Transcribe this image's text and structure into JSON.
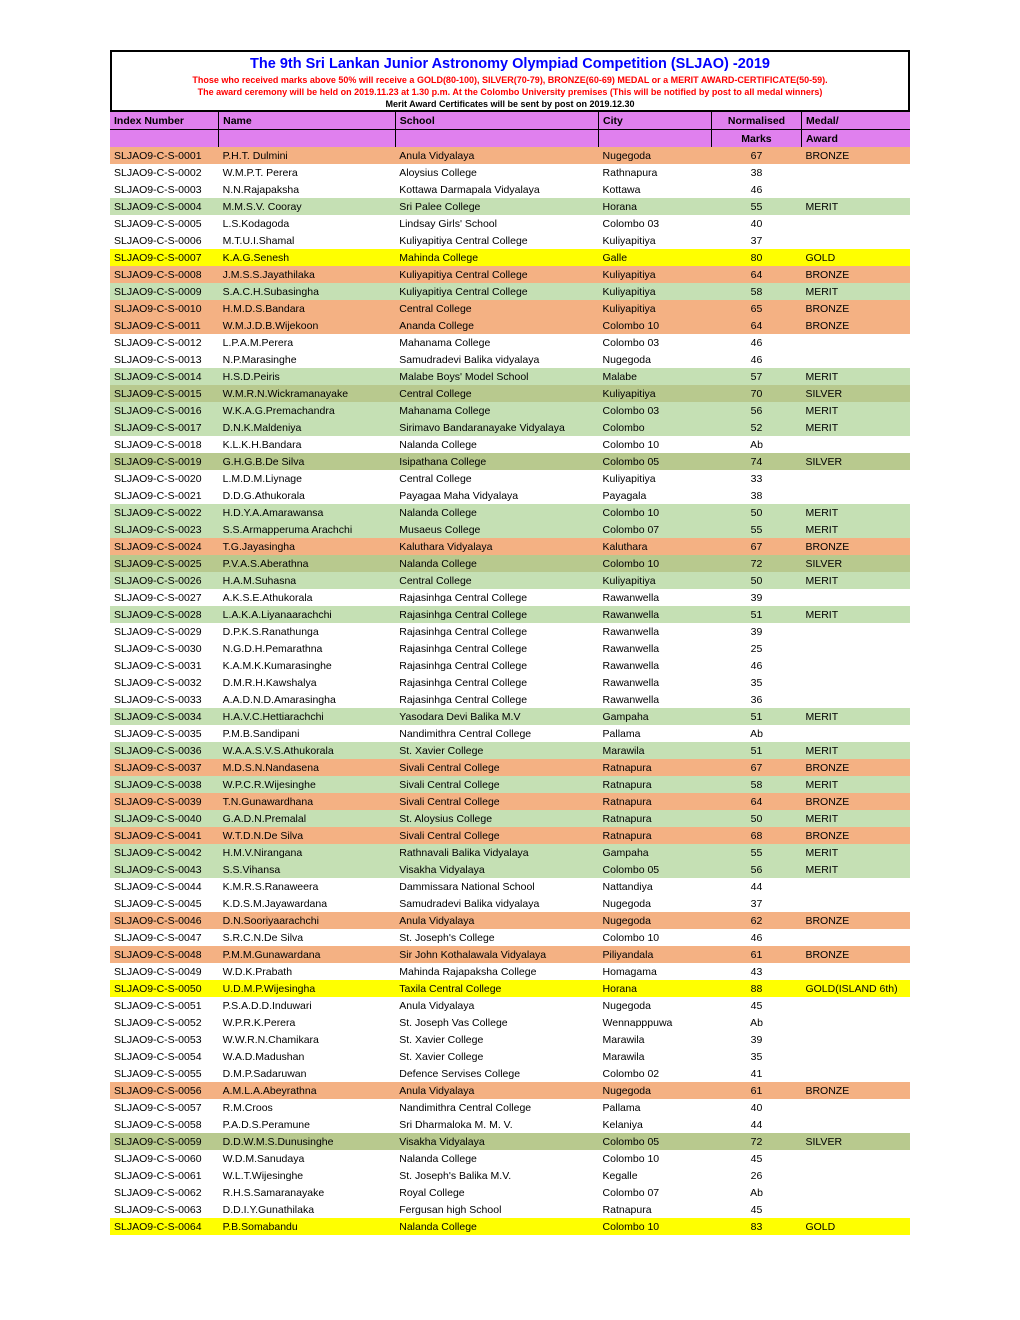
{
  "header": {
    "title": "The 9th Sri Lankan Junior Astronomy  Olympiad Competition (SLJAO) -2019",
    "line1": "Those who received marks above 50% will receive a GOLD(80-100), SILVER(70-79), BRONZE(60-69) MEDAL or a MERIT AWARD-CERTIFICATE(50-59).",
    "line2": "The award ceremony will be held on 2019.11.23 at 1.30 p.m. At the Colombo University premises (This will be notified by post to all medal  winners)",
    "line3": "Merit Award Certificates will be sent by post on 2019.12.30"
  },
  "columns": {
    "index": "Index Number",
    "name": "Name",
    "school": "School",
    "city": "City",
    "marks1": "Normalised",
    "marks2": "Marks",
    "award1": "Medal/",
    "award2": "Award"
  },
  "colors": {
    "gold": "#ffff00",
    "silver": "#b8c98e",
    "bronze": "#f4b183",
    "merit": "#c5e0b4",
    "none": "#ffffff",
    "header_bg": "#e080ee",
    "title_color": "#0000ff",
    "subtext_color": "#ff0000"
  },
  "rows": [
    {
      "index": "SLJAO9-C-S-0001",
      "name": "P.H.T. Dulmini",
      "school": "Anula Vidyalaya",
      "city": "Nugegoda",
      "marks": "67",
      "award": "BRONZE",
      "tier": "bronze"
    },
    {
      "index": "SLJAO9-C-S-0002",
      "name": "W.M.P.T. Perera",
      "school": "Aloysius College",
      "city": "Rathnapura",
      "marks": "38",
      "award": "",
      "tier": "none"
    },
    {
      "index": "SLJAO9-C-S-0003",
      "name": "N.N.Rajapaksha",
      "school": "Kottawa Darmapala Vidyalaya",
      "city": "Kottawa",
      "marks": "46",
      "award": "",
      "tier": "none"
    },
    {
      "index": "SLJAO9-C-S-0004",
      "name": "M.M.S.V. Cooray",
      "school": "Sri Palee College",
      "city": "Horana",
      "marks": "55",
      "award": "MERIT",
      "tier": "merit"
    },
    {
      "index": "SLJAO9-C-S-0005",
      "name": "L.S.Kodagoda",
      "school": "Lindsay Girls' School",
      "city": "Colombo 03",
      "marks": "40",
      "award": "",
      "tier": "none"
    },
    {
      "index": "SLJAO9-C-S-0006",
      "name": "M.T.U.I.Shamal",
      "school": "Kuliyapitiya Central College",
      "city": "Kuliyapitiya",
      "marks": "37",
      "award": "",
      "tier": "none"
    },
    {
      "index": "SLJAO9-C-S-0007",
      "name": "K.A.G.Senesh",
      "school": "Mahinda College",
      "city": "Galle",
      "marks": "80",
      "award": "GOLD",
      "tier": "gold"
    },
    {
      "index": "SLJAO9-C-S-0008",
      "name": "J.M.S.S.Jayathilaka",
      "school": "Kuliyapitiya Central College",
      "city": "Kuliyapitiya",
      "marks": "64",
      "award": "BRONZE",
      "tier": "bronze"
    },
    {
      "index": "SLJAO9-C-S-0009",
      "name": "S.A.C.H.Subasingha",
      "school": "Kuliyapitiya Central College",
      "city": "Kuliyapitiya",
      "marks": "58",
      "award": "MERIT",
      "tier": "merit"
    },
    {
      "index": "SLJAO9-C-S-0010",
      "name": "H.M.D.S.Bandara",
      "school": "Central College",
      "city": "Kuliyapitiya",
      "marks": "65",
      "award": "BRONZE",
      "tier": "bronze"
    },
    {
      "index": "SLJAO9-C-S-0011",
      "name": "W.M.J.D.B.Wijekoon",
      "school": "Ananda College",
      "city": "Colombo 10",
      "marks": "64",
      "award": "BRONZE",
      "tier": "bronze"
    },
    {
      "index": "SLJAO9-C-S-0012",
      "name": "L.P.A.M.Perera",
      "school": "Mahanama College",
      "city": "Colombo 03",
      "marks": "46",
      "award": "",
      "tier": "none"
    },
    {
      "index": "SLJAO9-C-S-0013",
      "name": "N.P.Marasinghe",
      "school": "Samudradevi Balika vidyalaya",
      "city": "Nugegoda",
      "marks": "46",
      "award": "",
      "tier": "none"
    },
    {
      "index": "SLJAO9-C-S-0014",
      "name": "H.S.D.Peiris",
      "school": "Malabe Boys' Model School",
      "city": "Malabe",
      "marks": "57",
      "award": "MERIT",
      "tier": "merit"
    },
    {
      "index": "SLJAO9-C-S-0015",
      "name": "W.M.R.N.Wickramanayake",
      "school": "Central College",
      "city": "Kuliyapitiya",
      "marks": "70",
      "award": "SILVER",
      "tier": "silver"
    },
    {
      "index": "SLJAO9-C-S-0016",
      "name": "W.K.A.G.Premachandra",
      "school": "Mahanama College",
      "city": "Colombo 03",
      "marks": "56",
      "award": "MERIT",
      "tier": "merit"
    },
    {
      "index": "SLJAO9-C-S-0017",
      "name": "D.N.K.Maldeniya",
      "school": "Sirimavo Bandaranayake Vidyalaya",
      "city": "Colombo",
      "marks": "52",
      "award": "MERIT",
      "tier": "merit"
    },
    {
      "index": "SLJAO9-C-S-0018",
      "name": "K.L.K.H.Bandara",
      "school": "Nalanda College",
      "city": "Colombo 10",
      "marks": "Ab",
      "award": "",
      "tier": "none"
    },
    {
      "index": "SLJAO9-C-S-0019",
      "name": "G.H.G.B.De Silva",
      "school": "Isipathana College",
      "city": "Colombo 05",
      "marks": "74",
      "award": "SILVER",
      "tier": "silver"
    },
    {
      "index": "SLJAO9-C-S-0020",
      "name": "L.M.D.M.Liynage",
      "school": "Central College",
      "city": "Kuliyapitiya",
      "marks": "33",
      "award": "",
      "tier": "none"
    },
    {
      "index": "SLJAO9-C-S-0021",
      "name": "D.D.G.Athukorala",
      "school": "Payagaa Maha Vidyalaya",
      "city": "Payagala",
      "marks": "38",
      "award": "",
      "tier": "none"
    },
    {
      "index": "SLJAO9-C-S-0022",
      "name": "H.D.Y.A.Amarawansa",
      "school": "Nalanda College",
      "city": "Colombo 10",
      "marks": "50",
      "award": "MERIT",
      "tier": "merit"
    },
    {
      "index": "SLJAO9-C-S-0023",
      "name": "S.S.Armapperuma Arachchi",
      "school": "Musaeus College",
      "city": "Colombo 07",
      "marks": "55",
      "award": "MERIT",
      "tier": "merit"
    },
    {
      "index": "SLJAO9-C-S-0024",
      "name": "T.G.Jayasingha",
      "school": "Kaluthara Vidyalaya",
      "city": "Kaluthara",
      "marks": "67",
      "award": "BRONZE",
      "tier": "bronze"
    },
    {
      "index": "SLJAO9-C-S-0025",
      "name": "P.V.A.S.Aberathna",
      "school": "Nalanda College",
      "city": "Colombo 10",
      "marks": "72",
      "award": "SILVER",
      "tier": "silver"
    },
    {
      "index": "SLJAO9-C-S-0026",
      "name": "H.A.M.Suhasna",
      "school": "Central College",
      "city": "Kuliyapitiya",
      "marks": "50",
      "award": "MERIT",
      "tier": "merit"
    },
    {
      "index": "SLJAO9-C-S-0027",
      "name": "A.K.S.E.Athukorala",
      "school": "Rajasinhga Central College",
      "city": "Rawanwella",
      "marks": "39",
      "award": "",
      "tier": "none"
    },
    {
      "index": "SLJAO9-C-S-0028",
      "name": "L.A.K.A.Liyanaarachchi",
      "school": "Rajasinhga Central College",
      "city": "Rawanwella",
      "marks": "51",
      "award": "MERIT",
      "tier": "merit"
    },
    {
      "index": "SLJAO9-C-S-0029",
      "name": "D.P.K.S.Ranathunga",
      "school": "Rajasinhga Central College",
      "city": "Rawanwella",
      "marks": "39",
      "award": "",
      "tier": "none"
    },
    {
      "index": "SLJAO9-C-S-0030",
      "name": "N.G.D.H.Pemarathna",
      "school": "Rajasinhga Central College",
      "city": "Rawanwella",
      "marks": "25",
      "award": "",
      "tier": "none"
    },
    {
      "index": "SLJAO9-C-S-0031",
      "name": "K.A.M.K.Kumarasinghe",
      "school": "Rajasinhga Central College",
      "city": "Rawanwella",
      "marks": "46",
      "award": "",
      "tier": "none"
    },
    {
      "index": "SLJAO9-C-S-0032",
      "name": "D.M.R.H.Kawshalya",
      "school": "Rajasinhga Central College",
      "city": "Rawanwella",
      "marks": "35",
      "award": "",
      "tier": "none"
    },
    {
      "index": "SLJAO9-C-S-0033",
      "name": "A.A.D.N.D.Amarasingha",
      "school": "Rajasinhga Central College",
      "city": "Rawanwella",
      "marks": "36",
      "award": "",
      "tier": "none"
    },
    {
      "index": "SLJAO9-C-S-0034",
      "name": "H.A.V.C.Hettiarachchi",
      "school": "Yasodara Devi Balika M.V",
      "city": "Gampaha",
      "marks": "51",
      "award": "MERIT",
      "tier": "merit"
    },
    {
      "index": "SLJAO9-C-S-0035",
      "name": "P.M.B.Sandipani",
      "school": "Nandimithra Central College",
      "city": "Pallama",
      "marks": "Ab",
      "award": "",
      "tier": "none"
    },
    {
      "index": "SLJAO9-C-S-0036",
      "name": "W.A.A.S.V.S.Athukorala",
      "school": "St. Xavier College",
      "city": "Marawila",
      "marks": "51",
      "award": "MERIT",
      "tier": "merit"
    },
    {
      "index": "SLJAO9-C-S-0037",
      "name": "M.D.S.N.Nandasena",
      "school": "Sivali Central College",
      "city": "Ratnapura",
      "marks": "67",
      "award": "BRONZE",
      "tier": "bronze"
    },
    {
      "index": "SLJAO9-C-S-0038",
      "name": "W.P.C.R.Wijesinghe",
      "school": "Sivali Central College",
      "city": "Ratnapura",
      "marks": "58",
      "award": "MERIT",
      "tier": "merit"
    },
    {
      "index": "SLJAO9-C-S-0039",
      "name": "T.N.Gunawardhana",
      "school": "Sivali Central College",
      "city": "Ratnapura",
      "marks": "64",
      "award": "BRONZE",
      "tier": "bronze"
    },
    {
      "index": "SLJAO9-C-S-0040",
      "name": "G.A.D.N.Premalal",
      "school": "St. Aloysius College",
      "city": "Ratnapura",
      "marks": "50",
      "award": "MERIT",
      "tier": "merit"
    },
    {
      "index": "SLJAO9-C-S-0041",
      "name": "W.T.D.N.De Silva",
      "school": "Sivali Central College",
      "city": "Ratnapura",
      "marks": "68",
      "award": "BRONZE",
      "tier": "bronze"
    },
    {
      "index": "SLJAO9-C-S-0042",
      "name": "H.M.V.Nirangana",
      "school": "Rathnavali Balika Vidyalaya",
      "city": "Gampaha",
      "marks": "55",
      "award": "MERIT",
      "tier": "merit"
    },
    {
      "index": "SLJAO9-C-S-0043",
      "name": "S.S.Vihansa",
      "school": "Visakha Vidyalaya",
      "city": "Colombo 05",
      "marks": "56",
      "award": "MERIT",
      "tier": "merit"
    },
    {
      "index": "SLJAO9-C-S-0044",
      "name": "K.M.R.S.Ranaweera",
      "school": "Dammissara National School",
      "city": "Nattandiya",
      "marks": "44",
      "award": "",
      "tier": "none"
    },
    {
      "index": "SLJAO9-C-S-0045",
      "name": "K.D.S.M.Jayawardana",
      "school": "Samudradevi Balika vidyalaya",
      "city": "Nugegoda",
      "marks": "37",
      "award": "",
      "tier": "none"
    },
    {
      "index": "SLJAO9-C-S-0046",
      "name": "D.N.Sooriyaarachchi",
      "school": "Anula Vidyalaya",
      "city": "Nugegoda",
      "marks": "62",
      "award": "BRONZE",
      "tier": "bronze"
    },
    {
      "index": "SLJAO9-C-S-0047",
      "name": "S.R.C.N.De Silva",
      "school": "St. Joseph's College",
      "city": "Colombo 10",
      "marks": "46",
      "award": "",
      "tier": "none"
    },
    {
      "index": "SLJAO9-C-S-0048",
      "name": "P.M.M.Gunawardana",
      "school": "Sir John Kothalawala Vidyalaya",
      "city": "Piliyandala",
      "marks": "61",
      "award": "BRONZE",
      "tier": "bronze"
    },
    {
      "index": "SLJAO9-C-S-0049",
      "name": "W.D.K.Prabath",
      "school": "Mahinda Rajapaksha College",
      "city": "Homagama",
      "marks": "43",
      "award": "",
      "tier": "none"
    },
    {
      "index": "SLJAO9-C-S-0050",
      "name": "U.D.M.P.Wijesingha",
      "school": "Taxila Central College",
      "city": "Horana",
      "marks": "88",
      "award": "GOLD(ISLAND 6th)",
      "tier": "gold"
    },
    {
      "index": "SLJAO9-C-S-0051",
      "name": "P.S.A.D.D.Induwari",
      "school": "Anula Vidyalaya",
      "city": "Nugegoda",
      "marks": "45",
      "award": "",
      "tier": "none"
    },
    {
      "index": "SLJAO9-C-S-0052",
      "name": "W.P.R.K.Perera",
      "school": "St. Joseph Vas College",
      "city": "Wennapppuwa",
      "marks": "Ab",
      "award": "",
      "tier": "none"
    },
    {
      "index": "SLJAO9-C-S-0053",
      "name": "W.W.R.N.Chamikara",
      "school": "St. Xavier College",
      "city": "Marawila",
      "marks": "39",
      "award": "",
      "tier": "none"
    },
    {
      "index": "SLJAO9-C-S-0054",
      "name": "W.A.D.Madushan",
      "school": "St. Xavier College",
      "city": "Marawila",
      "marks": "35",
      "award": "",
      "tier": "none"
    },
    {
      "index": "SLJAO9-C-S-0055",
      "name": "D.M.P.Sadaruwan",
      "school": "Defence Servises College",
      "city": "Colombo 02",
      "marks": "41",
      "award": "",
      "tier": "none"
    },
    {
      "index": "SLJAO9-C-S-0056",
      "name": "A.M.L.A.Abeyrathna",
      "school": "Anula Vidyalaya",
      "city": "Nugegoda",
      "marks": "61",
      "award": "BRONZE",
      "tier": "bronze"
    },
    {
      "index": "SLJAO9-C-S-0057",
      "name": "R.M.Croos",
      "school": "Nandimithra Central College",
      "city": "Pallama",
      "marks": "40",
      "award": "",
      "tier": "none"
    },
    {
      "index": "SLJAO9-C-S-0058",
      "name": "P.A.D.S.Peramune",
      "school": "Sri Dharmaloka M. M. V.",
      "city": "Kelaniya",
      "marks": "44",
      "award": "",
      "tier": "none"
    },
    {
      "index": "SLJAO9-C-S-0059",
      "name": "D.D.W.M.S.Dunusinghe",
      "school": "Visakha Vidyalaya",
      "city": "Colombo 05",
      "marks": "72",
      "award": "SILVER",
      "tier": "silver"
    },
    {
      "index": "SLJAO9-C-S-0060",
      "name": "W.D.M.Sanudaya",
      "school": "Nalanda College",
      "city": "Colombo 10",
      "marks": "45",
      "award": "",
      "tier": "none"
    },
    {
      "index": "SLJAO9-C-S-0061",
      "name": "W.L.T.Wijesinghe",
      "school": "St. Joseph's Balika M.V.",
      "city": "Kegalle",
      "marks": "26",
      "award": "",
      "tier": "none"
    },
    {
      "index": "SLJAO9-C-S-0062",
      "name": "R.H.S.Samaranayake",
      "school": "Royal College",
      "city": "Colombo 07",
      "marks": "Ab",
      "award": "",
      "tier": "none"
    },
    {
      "index": "SLJAO9-C-S-0063",
      "name": "D.D.I.Y.Gunathilaka",
      "school": "Fergusan high School",
      "city": "Ratnapura",
      "marks": "45",
      "award": "",
      "tier": "none"
    },
    {
      "index": "SLJAO9-C-S-0064",
      "name": "P.B.Somabandu",
      "school": "Nalanda College",
      "city": "Colombo 10",
      "marks": "83",
      "award": "GOLD",
      "tier": "gold"
    }
  ]
}
